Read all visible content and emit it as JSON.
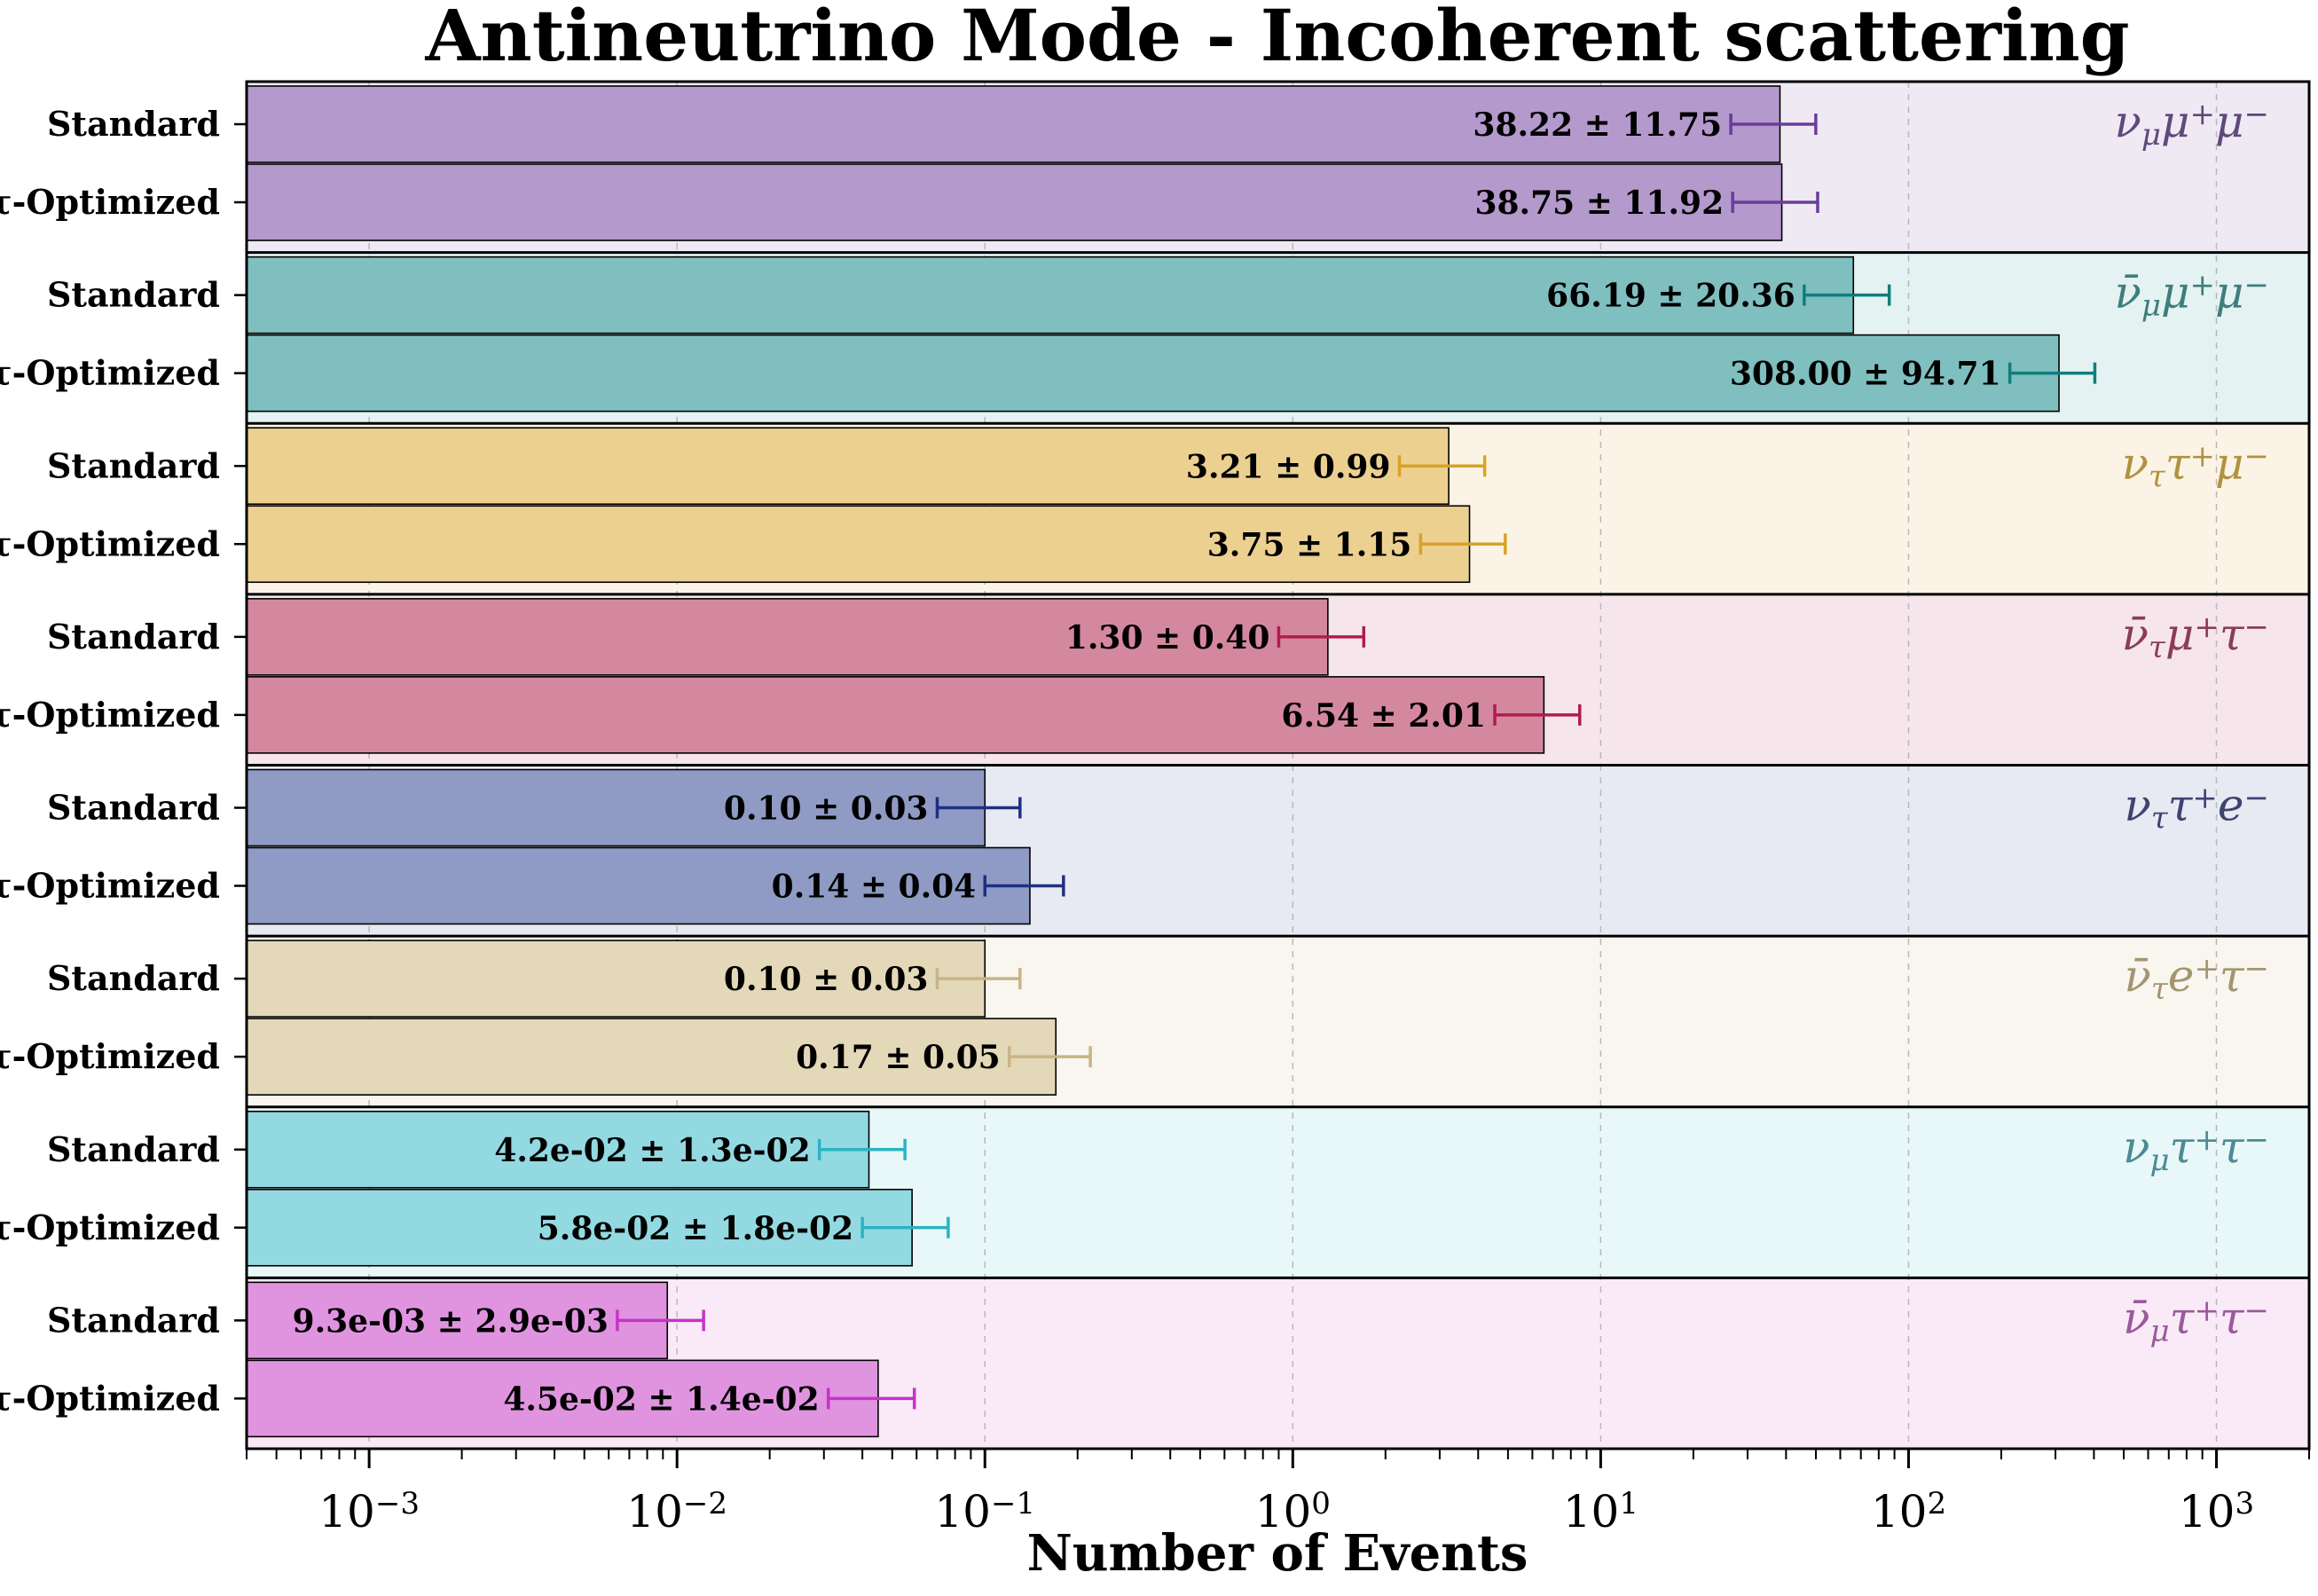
{
  "chart_data": {
    "type": "bar",
    "orientation": "horizontal",
    "title": "Antineutrino Mode - Incoherent scattering",
    "xlabel": "Number of Events",
    "xscale": "log",
    "xlim": [
      0.0004,
      2000
    ],
    "grid": "vertical dashed at decades",
    "x_ticks": [
      {
        "value": 0.001,
        "base": "10",
        "exp": "−3"
      },
      {
        "value": 0.01,
        "base": "10",
        "exp": "−2"
      },
      {
        "value": 0.1,
        "base": "10",
        "exp": "−1"
      },
      {
        "value": 1,
        "base": "10",
        "exp": "0"
      },
      {
        "value": 10,
        "base": "10",
        "exp": "1"
      },
      {
        "value": 100,
        "base": "10",
        "exp": "2"
      },
      {
        "value": 1000,
        "base": "10",
        "exp": "3"
      }
    ],
    "row_labels": [
      "Standard",
      "τ-Optimized"
    ],
    "groups": [
      {
        "channel": [
          {
            "t": "ν"
          },
          {
            "t": "μ",
            "sub": true
          },
          {
            "t": "μ"
          },
          {
            "t": "+",
            "sup": true
          },
          {
            "t": "μ"
          },
          {
            "t": "−",
            "sup": true
          }
        ],
        "bar_color": "#b399cc",
        "bg_color": "#efe9f4",
        "err_color": "#6a3d9a",
        "label_color": "#5e4a7a",
        "bars": [
          {
            "value": 38.22,
            "error": 11.75,
            "label": "38.22 ± 11.75"
          },
          {
            "value": 38.75,
            "error": 11.92,
            "label": "38.75 ± 11.92"
          }
        ]
      },
      {
        "channel": [
          {
            "t": "ν̄"
          },
          {
            "t": "μ",
            "sub": true
          },
          {
            "t": "μ"
          },
          {
            "t": "+",
            "sup": true
          },
          {
            "t": "μ"
          },
          {
            "t": "−",
            "sup": true
          }
        ],
        "bar_color": "#80bfbf",
        "bg_color": "#e4f2f1",
        "err_color": "#0e7e7c",
        "label_color": "#3f7d7d",
        "bars": [
          {
            "value": 66.19,
            "error": 20.36,
            "label": "66.19 ± 20.36"
          },
          {
            "value": 308.0,
            "error": 94.71,
            "label": "308.00 ± 94.71"
          }
        ]
      },
      {
        "channel": [
          {
            "t": "ν"
          },
          {
            "t": "τ",
            "sub": true
          },
          {
            "t": "τ"
          },
          {
            "t": "+",
            "sup": true
          },
          {
            "t": "μ"
          },
          {
            "t": "−",
            "sup": true
          }
        ],
        "bar_color": "#ecd090",
        "bg_color": "#fbf4e6",
        "err_color": "#d9a227",
        "label_color": "#b0923f",
        "bars": [
          {
            "value": 3.21,
            "error": 0.99,
            "label": "3.21 ± 0.99"
          },
          {
            "value": 3.75,
            "error": 1.15,
            "label": "3.75 ± 1.15"
          }
        ]
      },
      {
        "channel": [
          {
            "t": "ν̄"
          },
          {
            "t": "τ",
            "sub": true
          },
          {
            "t": "μ"
          },
          {
            "t": "+",
            "sup": true
          },
          {
            "t": "τ"
          },
          {
            "t": "−",
            "sup": true
          }
        ],
        "bar_color": "#d4889f",
        "bg_color": "#f6e6ec",
        "err_color": "#b01c4e",
        "label_color": "#8a3e55",
        "bars": [
          {
            "value": 1.3,
            "error": 0.4,
            "label": "1.30 ± 0.40"
          },
          {
            "value": 6.54,
            "error": 2.01,
            "label": "6.54 ± 2.01"
          }
        ]
      },
      {
        "channel": [
          {
            "t": "ν"
          },
          {
            "t": "τ",
            "sub": true
          },
          {
            "t": "τ"
          },
          {
            "t": "+",
            "sup": true
          },
          {
            "t": "e"
          },
          {
            "t": "−",
            "sup": true
          }
        ],
        "bar_color": "#8f9bc4",
        "bg_color": "#e8eaf3",
        "err_color": "#1f2f82",
        "label_color": "#3e4470",
        "bars": [
          {
            "value": 0.1,
            "error": 0.03,
            "label": "0.10 ± 0.03"
          },
          {
            "value": 0.14,
            "error": 0.04,
            "label": "0.14 ± 0.04"
          }
        ]
      },
      {
        "channel": [
          {
            "t": "ν̄"
          },
          {
            "t": "τ",
            "sub": true
          },
          {
            "t": "e"
          },
          {
            "t": "+",
            "sup": true
          },
          {
            "t": "τ"
          },
          {
            "t": "−",
            "sup": true
          }
        ],
        "bar_color": "#e3d8b8",
        "bg_color": "#f8f6ef",
        "err_color": "#c9b487",
        "label_color": "#a39571",
        "bars": [
          {
            "value": 0.1,
            "error": 0.03,
            "label": "0.10 ± 0.03"
          },
          {
            "value": 0.17,
            "error": 0.05,
            "label": "0.17 ± 0.05"
          }
        ]
      },
      {
        "channel": [
          {
            "t": "ν"
          },
          {
            "t": "μ",
            "sub": true
          },
          {
            "t": "τ"
          },
          {
            "t": "+",
            "sup": true
          },
          {
            "t": "τ"
          },
          {
            "t": "−",
            "sup": true
          }
        ],
        "bar_color": "#93d9e1",
        "bg_color": "#e8f7f8",
        "err_color": "#2bb3c1",
        "label_color": "#4d8a94",
        "bars": [
          {
            "value": 0.042,
            "error": 0.013,
            "label": "4.2e-02 ± 1.3e-02"
          },
          {
            "value": 0.058,
            "error": 0.018,
            "label": "5.8e-02 ± 1.8e-02"
          }
        ]
      },
      {
        "channel": [
          {
            "t": "ν̄"
          },
          {
            "t": "μ",
            "sub": true
          },
          {
            "t": "τ"
          },
          {
            "t": "+",
            "sup": true
          },
          {
            "t": "τ"
          },
          {
            "t": "−",
            "sup": true
          }
        ],
        "bar_color": "#e094e0",
        "bg_color": "#faeaf8",
        "err_color": "#c733c7",
        "label_color": "#9a5a9a",
        "bars": [
          {
            "value": 0.0093,
            "error": 0.0029,
            "label": "9.3e-03 ± 2.9e-03"
          },
          {
            "value": 0.045,
            "error": 0.014,
            "label": "4.5e-02 ± 1.4e-02"
          }
        ]
      }
    ]
  }
}
